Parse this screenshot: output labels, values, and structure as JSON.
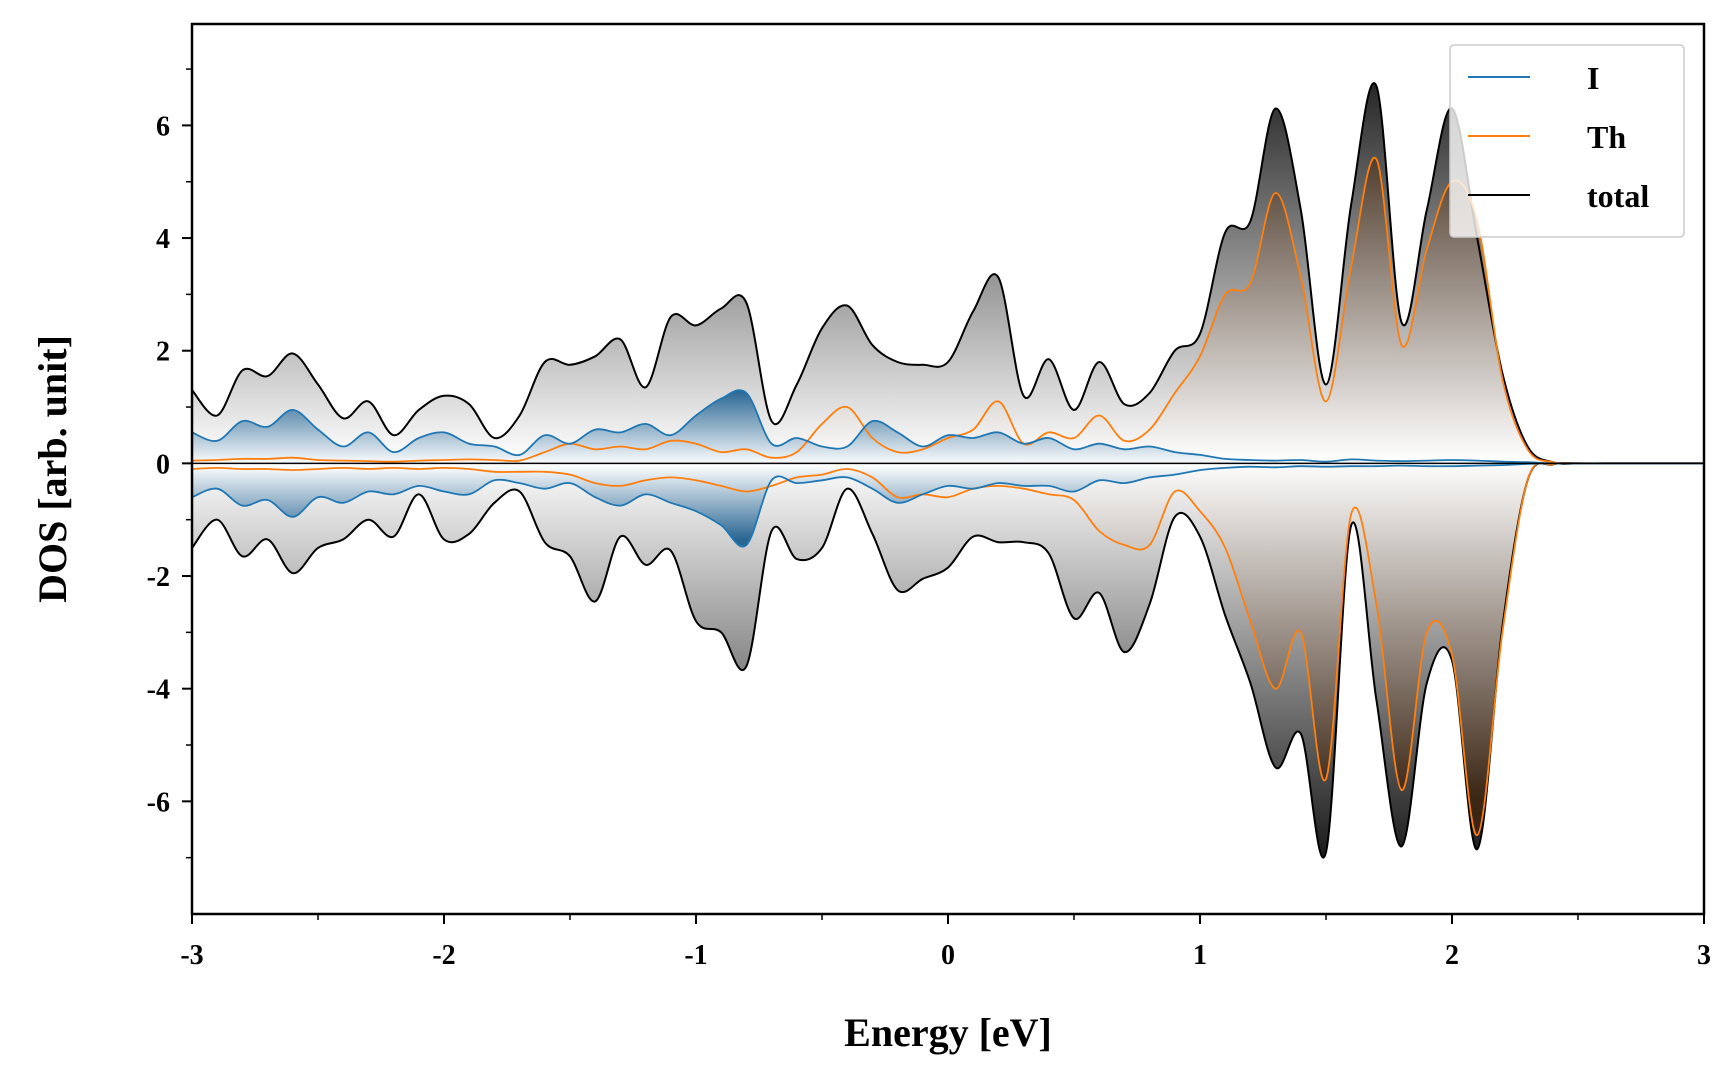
{
  "chart_data": {
    "type": "area",
    "xlabel": "Energy [eV]",
    "ylabel": "DOS [arb. unit]",
    "xlim": [
      -3,
      3
    ],
    "ylim": [
      -8,
      7.8
    ],
    "x_ticks": [
      -3,
      -2,
      -1,
      0,
      1,
      2,
      3
    ],
    "x_tick_labels": [
      "-3",
      "-2",
      "-1",
      "0",
      "1",
      "2",
      "3"
    ],
    "y_ticks": [
      6,
      4,
      2,
      0,
      -2,
      -4,
      -6
    ],
    "y_tick_labels": [
      "6",
      "4",
      "2",
      "0",
      "-2",
      "-4",
      "-6"
    ],
    "grid": false,
    "legend_position": "top-right",
    "series": [
      {
        "name": "I",
        "color": "#1f77b4",
        "x": [
          -3.0,
          -2.9,
          -2.8,
          -2.7,
          -2.6,
          -2.5,
          -2.4,
          -2.3,
          -2.2,
          -2.1,
          -2.0,
          -1.9,
          -1.8,
          -1.7,
          -1.6,
          -1.5,
          -1.4,
          -1.3,
          -1.2,
          -1.1,
          -1.0,
          -0.9,
          -0.8,
          -0.7,
          -0.6,
          -0.5,
          -0.4,
          -0.3,
          -0.2,
          -0.1,
          0.0,
          0.1,
          0.2,
          0.3,
          0.4,
          0.5,
          0.6,
          0.7,
          0.8,
          0.9,
          1.0,
          1.1,
          1.2,
          1.3,
          1.4,
          1.5,
          1.6,
          1.7,
          1.8,
          1.9,
          2.0,
          2.1,
          2.2,
          2.3,
          2.4,
          2.5,
          2.6,
          2.7,
          2.8,
          2.9,
          3.0
        ],
        "up": [
          0.55,
          0.4,
          0.75,
          0.65,
          0.95,
          0.6,
          0.3,
          0.55,
          0.2,
          0.45,
          0.55,
          0.35,
          0.3,
          0.15,
          0.5,
          0.35,
          0.6,
          0.55,
          0.7,
          0.5,
          0.85,
          1.15,
          1.25,
          0.35,
          0.45,
          0.3,
          0.3,
          0.75,
          0.55,
          0.3,
          0.5,
          0.45,
          0.55,
          0.35,
          0.45,
          0.25,
          0.35,
          0.25,
          0.3,
          0.2,
          0.15,
          0.08,
          0.06,
          0.05,
          0.06,
          0.03,
          0.07,
          0.05,
          0.04,
          0.05,
          0.06,
          0.05,
          0.03,
          0.02,
          0.0,
          0.0,
          0.0,
          0.0,
          0.0,
          0.0,
          0.0
        ],
        "down": [
          -0.6,
          -0.45,
          -0.75,
          -0.65,
          -0.95,
          -0.6,
          -0.7,
          -0.5,
          -0.55,
          -0.4,
          -0.5,
          -0.55,
          -0.3,
          -0.35,
          -0.45,
          -0.35,
          -0.6,
          -0.75,
          -0.55,
          -0.7,
          -0.85,
          -1.1,
          -1.45,
          -0.3,
          -0.35,
          -0.3,
          -0.25,
          -0.45,
          -0.7,
          -0.55,
          -0.4,
          -0.45,
          -0.35,
          -0.4,
          -0.4,
          -0.5,
          -0.3,
          -0.35,
          -0.25,
          -0.2,
          -0.12,
          -0.08,
          -0.06,
          -0.07,
          -0.05,
          -0.06,
          -0.05,
          -0.05,
          -0.04,
          -0.05,
          -0.05,
          -0.04,
          -0.03,
          -0.01,
          0.0,
          0.0,
          0.0,
          0.0,
          0.0,
          0.0,
          0.0
        ]
      },
      {
        "name": "Th",
        "color": "#ff7f0e",
        "x": [
          -3.0,
          -2.9,
          -2.8,
          -2.7,
          -2.6,
          -2.5,
          -2.4,
          -2.3,
          -2.2,
          -2.1,
          -2.0,
          -1.9,
          -1.8,
          -1.7,
          -1.6,
          -1.5,
          -1.4,
          -1.3,
          -1.2,
          -1.1,
          -1.0,
          -0.9,
          -0.8,
          -0.7,
          -0.6,
          -0.5,
          -0.4,
          -0.3,
          -0.2,
          -0.1,
          0.0,
          0.1,
          0.2,
          0.3,
          0.4,
          0.5,
          0.6,
          0.7,
          0.8,
          0.9,
          1.0,
          1.1,
          1.2,
          1.3,
          1.4,
          1.5,
          1.6,
          1.7,
          1.8,
          1.9,
          2.0,
          2.1,
          2.2,
          2.3,
          2.4,
          2.5,
          2.6,
          2.7,
          2.8,
          2.9,
          3.0
        ],
        "up": [
          0.05,
          0.06,
          0.08,
          0.08,
          0.1,
          0.06,
          0.05,
          0.04,
          0.03,
          0.05,
          0.06,
          0.07,
          0.06,
          0.05,
          0.2,
          0.35,
          0.25,
          0.3,
          0.25,
          0.4,
          0.35,
          0.2,
          0.25,
          0.1,
          0.2,
          0.7,
          1.0,
          0.45,
          0.2,
          0.25,
          0.45,
          0.6,
          1.1,
          0.35,
          0.55,
          0.45,
          0.85,
          0.4,
          0.6,
          1.25,
          1.9,
          3.0,
          3.2,
          4.8,
          3.3,
          1.1,
          3.5,
          5.4,
          2.1,
          3.8,
          5.0,
          4.3,
          1.5,
          0.25,
          0.02,
          0.0,
          0.0,
          0.0,
          0.0,
          0.0,
          0.0
        ],
        "down": [
          -0.1,
          -0.08,
          -0.1,
          -0.1,
          -0.12,
          -0.1,
          -0.08,
          -0.1,
          -0.08,
          -0.1,
          -0.08,
          -0.1,
          -0.15,
          -0.15,
          -0.15,
          -0.2,
          -0.35,
          -0.4,
          -0.3,
          -0.25,
          -0.3,
          -0.4,
          -0.5,
          -0.4,
          -0.25,
          -0.2,
          -0.1,
          -0.25,
          -0.6,
          -0.55,
          -0.6,
          -0.45,
          -0.4,
          -0.45,
          -0.55,
          -0.65,
          -1.2,
          -1.45,
          -1.45,
          -0.5,
          -0.85,
          -1.5,
          -2.8,
          -4.0,
          -3.0,
          -5.6,
          -0.9,
          -2.5,
          -5.8,
          -3.0,
          -3.4,
          -6.6,
          -3.0,
          -0.3,
          -0.02,
          0.0,
          0.0,
          0.0,
          0.0,
          0.0,
          0.0
        ]
      },
      {
        "name": "total",
        "color": "#000000",
        "x": [
          -3.0,
          -2.9,
          -2.8,
          -2.7,
          -2.6,
          -2.5,
          -2.4,
          -2.3,
          -2.2,
          -2.1,
          -2.0,
          -1.9,
          -1.8,
          -1.7,
          -1.6,
          -1.5,
          -1.4,
          -1.3,
          -1.2,
          -1.1,
          -1.0,
          -0.9,
          -0.8,
          -0.7,
          -0.6,
          -0.5,
          -0.4,
          -0.3,
          -0.2,
          -0.1,
          0.0,
          0.1,
          0.2,
          0.3,
          0.4,
          0.5,
          0.6,
          0.7,
          0.8,
          0.9,
          1.0,
          1.1,
          1.2,
          1.3,
          1.4,
          1.5,
          1.6,
          1.7,
          1.8,
          1.9,
          2.0,
          2.1,
          2.2,
          2.3,
          2.4,
          2.5,
          2.6,
          2.7,
          2.8,
          2.9,
          3.0
        ],
        "up": [
          1.3,
          0.85,
          1.65,
          1.55,
          1.95,
          1.4,
          0.8,
          1.1,
          0.5,
          0.95,
          1.2,
          1.05,
          0.45,
          0.85,
          1.8,
          1.75,
          1.9,
          2.2,
          1.35,
          2.6,
          2.45,
          2.75,
          2.85,
          0.75,
          1.4,
          2.4,
          2.8,
          2.1,
          1.8,
          1.75,
          1.8,
          2.7,
          3.3,
          1.2,
          1.85,
          0.95,
          1.8,
          1.05,
          1.25,
          2.0,
          2.3,
          4.1,
          4.3,
          6.3,
          4.5,
          1.4,
          4.6,
          6.7,
          2.5,
          4.5,
          6.3,
          4.0,
          1.6,
          0.3,
          0.02,
          0.0,
          0.0,
          0.0,
          0.0,
          0.0,
          0.0
        ],
        "down": [
          -1.5,
          -1.0,
          -1.65,
          -1.35,
          -1.95,
          -1.5,
          -1.35,
          -1.0,
          -1.3,
          -0.55,
          -1.35,
          -1.25,
          -0.7,
          -0.5,
          -1.4,
          -1.65,
          -2.45,
          -1.3,
          -1.8,
          -1.55,
          -2.8,
          -3.0,
          -3.6,
          -1.2,
          -1.7,
          -1.5,
          -0.45,
          -1.25,
          -2.25,
          -2.05,
          -1.85,
          -1.3,
          -1.4,
          -1.4,
          -1.6,
          -2.75,
          -2.3,
          -3.35,
          -2.5,
          -0.95,
          -1.3,
          -2.7,
          -3.9,
          -5.4,
          -4.8,
          -6.9,
          -1.1,
          -4.2,
          -6.8,
          -3.9,
          -3.5,
          -6.85,
          -2.9,
          -0.3,
          -0.02,
          0.0,
          0.0,
          0.0,
          0.0,
          0.0,
          0.0
        ]
      }
    ]
  }
}
